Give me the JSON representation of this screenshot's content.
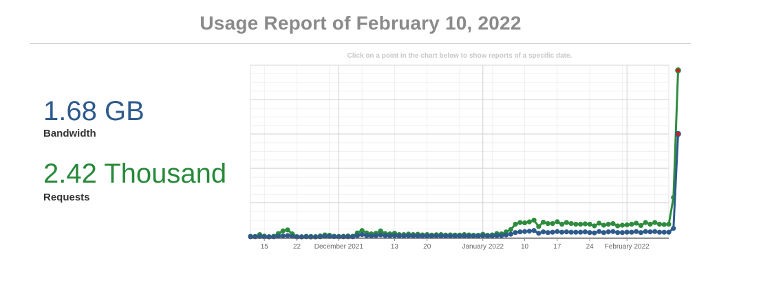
{
  "header": {
    "title": "Usage Report of February 10, 2022"
  },
  "metrics": {
    "bandwidth": {
      "value": "1.68 GB",
      "label": "Bandwidth",
      "color": "#2e5a8c"
    },
    "requests": {
      "value": "2.42 Thousand",
      "label": "Requests",
      "color": "#27893a"
    }
  },
  "chart_hint": "Click on a point in the chart below to show reports of a specific date.",
  "chart_data": {
    "type": "line",
    "x_start": "2021-11-12",
    "x_end": "2022-02-10",
    "x_ticks": [
      {
        "date": "2021-11-15",
        "label": "15"
      },
      {
        "date": "2021-11-22",
        "label": "22"
      },
      {
        "date": "2021-12-01",
        "label": "December 2021"
      },
      {
        "date": "2021-12-13",
        "label": "13"
      },
      {
        "date": "2021-12-20",
        "label": "20"
      },
      {
        "date": "2022-01-01",
        "label": "January 2022"
      },
      {
        "date": "2022-01-10",
        "label": "10"
      },
      {
        "date": "2022-01-17",
        "label": "17"
      },
      {
        "date": "2022-01-24",
        "label": "24"
      },
      {
        "date": "2022-02-01",
        "label": "February 2022"
      }
    ],
    "grid": true,
    "series": [
      {
        "name": "Requests",
        "color": "#2e8b3e",
        "values": [
          8,
          7,
          18,
          9,
          6,
          8,
          24,
          40,
          46,
          22,
          6,
          5,
          8,
          7,
          6,
          10,
          16,
          14,
          8,
          7,
          8,
          10,
          8,
          28,
          42,
          28,
          22,
          26,
          40,
          24,
          22,
          26,
          18,
          18,
          21,
          18,
          20,
          16,
          18,
          15,
          17,
          18,
          15,
          16,
          15,
          15,
          18,
          16,
          14,
          14,
          20,
          14,
          16,
          24,
          22,
          34,
          48,
          80,
          90,
          88,
          94,
          104,
          66,
          92,
          84,
          84,
          95,
          80,
          90,
          84,
          80,
          80,
          82,
          80,
          70,
          86,
          74,
          80,
          84,
          70,
          74,
          76,
          80,
          86,
          72,
          90,
          80,
          90,
          80,
          78,
          80,
          240,
          1000
        ]
      },
      {
        "name": "Bandwidth",
        "color": "#2e5a8c",
        "values": [
          5,
          5,
          7,
          5,
          4,
          5,
          8,
          10,
          12,
          8,
          4,
          4,
          5,
          4,
          4,
          5,
          8,
          7,
          6,
          5,
          5,
          5,
          5,
          12,
          18,
          12,
          10,
          12,
          16,
          12,
          11,
          12,
          10,
          10,
          11,
          10,
          10,
          9,
          10,
          9,
          10,
          10,
          9,
          9,
          9,
          9,
          10,
          9,
          9,
          9,
          11,
          9,
          10,
          12,
          12,
          16,
          20,
          30,
          34,
          36,
          38,
          42,
          26,
          34,
          30,
          32,
          36,
          32,
          34,
          32,
          32,
          32,
          34,
          30,
          28,
          36,
          30,
          34,
          36,
          30,
          30,
          32,
          32,
          36,
          30,
          36,
          34,
          36,
          32,
          32,
          32,
          55,
          620
        ]
      }
    ],
    "markers": [
      {
        "series": "Requests",
        "index": 92,
        "color": "#cc2222"
      },
      {
        "series": "Bandwidth",
        "index": 92,
        "color": "#cc2222"
      }
    ]
  }
}
